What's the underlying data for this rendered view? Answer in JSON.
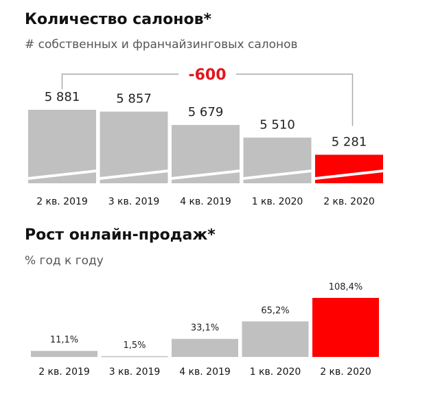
{
  "colors": {
    "bar": "#c0c0c0",
    "highlight": "#ff0000",
    "bracket": "#aaaaaa",
    "annotation": "#e3161c"
  },
  "chart_data": [
    {
      "type": "bar",
      "title": "Количество салонов*",
      "subtitle": "# собственных и франчайзинговых салонов",
      "categories": [
        "2 кв. 2019",
        "3 кв. 2019",
        "4 кв. 2019",
        "1 кв. 2020",
        "2 кв. 2020"
      ],
      "values": [
        5881,
        5857,
        5679,
        5510,
        5281
      ],
      "value_labels": [
        "5 881",
        "5 857",
        "5 679",
        "5 510",
        "5 281"
      ],
      "highlight_index": 4,
      "axis_break": true,
      "annotation": "-600",
      "ylim": [
        4900,
        5881
      ]
    },
    {
      "type": "bar",
      "title": "Рост онлайн-продаж*",
      "subtitle": "% год к году",
      "categories": [
        "2 кв. 2019",
        "3 кв. 2019",
        "4 кв. 2019",
        "1 кв. 2020",
        "2 кв. 2020"
      ],
      "values": [
        11.1,
        1.5,
        33.1,
        65.2,
        108.4
      ],
      "value_labels": [
        "11,1%",
        "1,5%",
        "33,1%",
        "65,2%",
        "108,4%"
      ],
      "highlight_index": 4,
      "ylim": [
        0,
        108.4
      ]
    }
  ]
}
